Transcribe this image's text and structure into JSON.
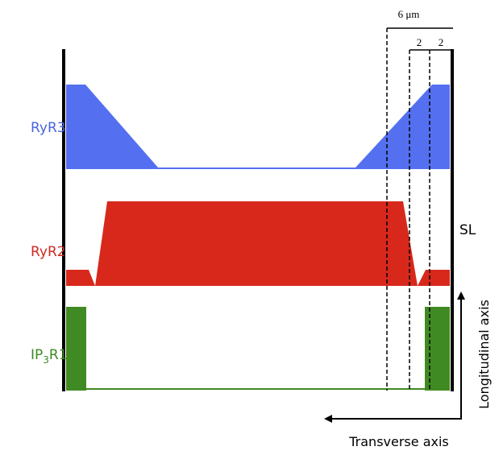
{
  "labels": {
    "ryr3": "RyR3",
    "ryr2": "RyR2",
    "ip3r1": {
      "main": "IP",
      "sub": "3",
      "rest": "R1"
    },
    "sl": "SL"
  },
  "scale": {
    "total": "6 μm",
    "left": "2",
    "right": "2"
  },
  "axes": {
    "longitudinal": "Longitudinal axis",
    "transverse": "Transverse axis"
  }
}
